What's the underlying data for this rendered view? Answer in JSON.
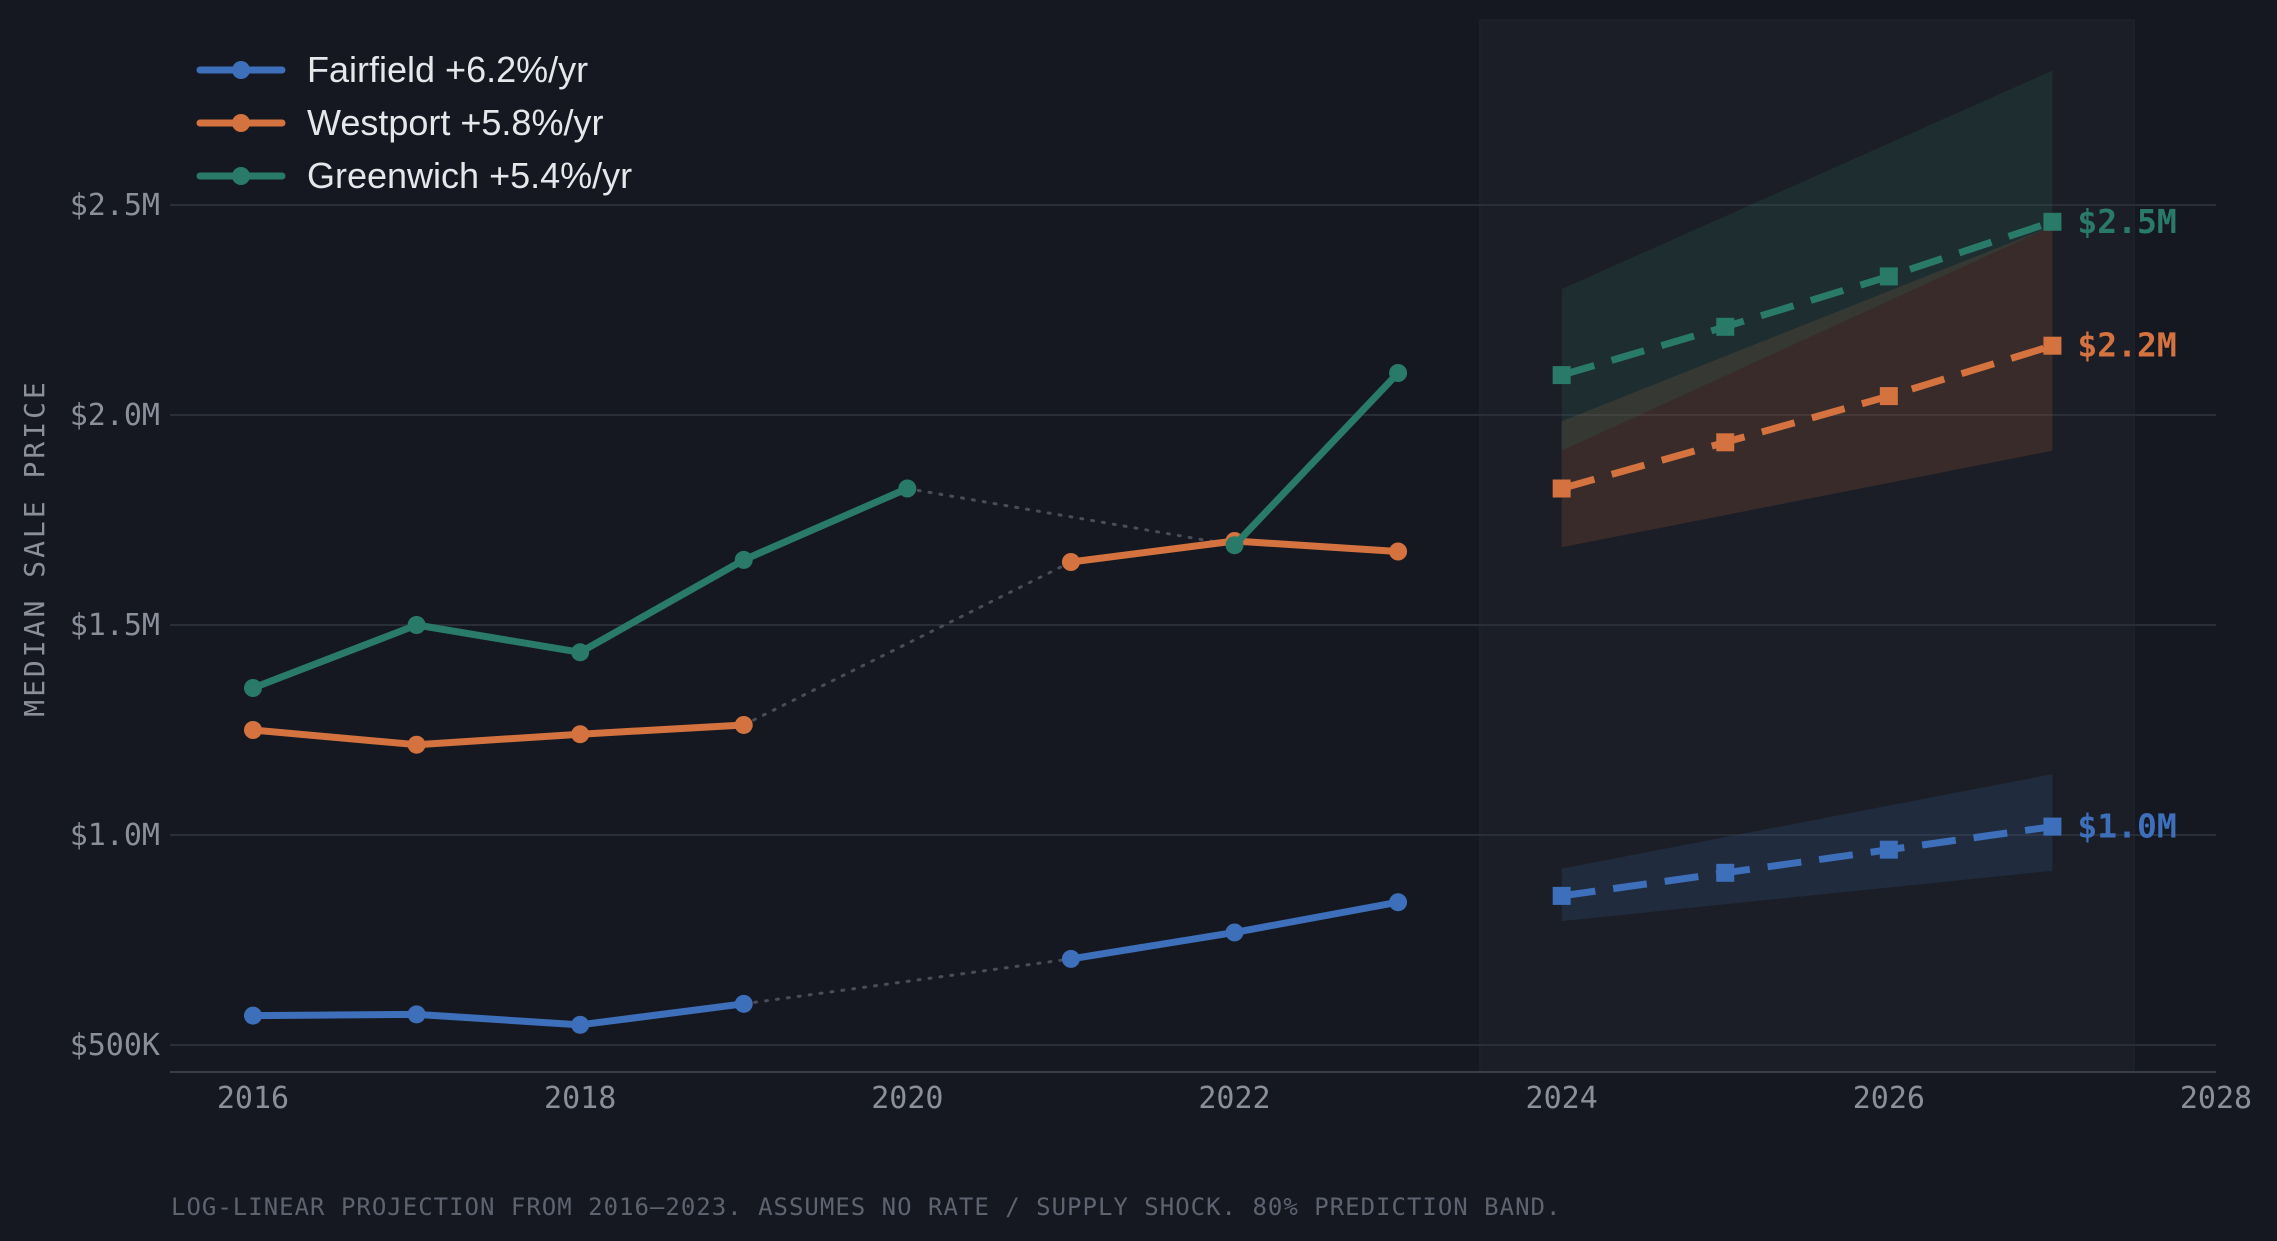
{
  "chart_data": {
    "type": "line",
    "xlabel": "",
    "ylabel": "MEDIAN SALE PRICE",
    "xlim": [
      2015.5,
      2028
    ],
    "ylim": [
      435000,
      2800000
    ],
    "y_ticks": [
      {
        "value": 500000,
        "label": "$500K"
      },
      {
        "value": 1000000,
        "label": "$1.0M"
      },
      {
        "value": 1500000,
        "label": "$1.5M"
      },
      {
        "value": 2000000,
        "label": "$2.0M"
      },
      {
        "value": 2500000,
        "label": "$2.5M"
      }
    ],
    "x_ticks": [
      {
        "value": 2016,
        "label": "2016"
      },
      {
        "value": 2018,
        "label": "2018"
      },
      {
        "value": 2020,
        "label": "2020"
      },
      {
        "value": 2022,
        "label": "2022"
      },
      {
        "value": 2024,
        "label": "2024"
      },
      {
        "value": 2026,
        "label": "2026"
      },
      {
        "value": 2028,
        "label": "2028"
      }
    ],
    "grid": "horizontal",
    "legend_position": "top-left",
    "forecast_region": [
      2023.5,
      2027.5
    ],
    "series": [
      {
        "name": "Fairfield",
        "legend_label": "Fairfield  +6.2%/yr",
        "color": "#3d6fbb",
        "historical": [
          [
            2016,
            570000
          ],
          [
            2017,
            573000
          ],
          [
            2018,
            548000
          ],
          [
            2019,
            598000
          ],
          [
            2021,
            705000
          ],
          [
            2022,
            768000
          ],
          [
            2023,
            840000
          ]
        ],
        "gaps": [
          [
            2019,
            2021
          ]
        ],
        "forecast": [
          [
            2024,
            855000
          ],
          [
            2025,
            910000
          ],
          [
            2026,
            965000
          ],
          [
            2027,
            1020000
          ]
        ],
        "band_low": [
          [
            2024,
            795000
          ],
          [
            2027,
            915000
          ]
        ],
        "band_high": [
          [
            2024,
            920000
          ],
          [
            2027,
            1145000
          ]
        ],
        "end_label": "$1.0M"
      },
      {
        "name": "Westport",
        "legend_label": "Westport  +5.8%/yr",
        "color": "#d4733f",
        "historical": [
          [
            2016,
            1250000
          ],
          [
            2017,
            1215000
          ],
          [
            2018,
            1240000
          ],
          [
            2019,
            1262000
          ],
          [
            2021,
            1650000
          ],
          [
            2022,
            1700000
          ],
          [
            2023,
            1675000
          ]
        ],
        "gaps": [
          [
            2019,
            2021
          ]
        ],
        "forecast": [
          [
            2024,
            1825000
          ],
          [
            2025,
            1935000
          ],
          [
            2026,
            2045000
          ],
          [
            2027,
            2165000
          ]
        ],
        "band_low": [
          [
            2024,
            1685000
          ],
          [
            2027,
            1915000
          ]
        ],
        "band_high": [
          [
            2024,
            1985000
          ],
          [
            2027,
            2450000
          ]
        ],
        "end_label": "$2.2M"
      },
      {
        "name": "Greenwich",
        "legend_label": "Greenwich  +5.4%/yr",
        "color": "#2a7a6a",
        "historical": [
          [
            2016,
            1350000
          ],
          [
            2017,
            1500000
          ],
          [
            2018,
            1435000
          ],
          [
            2019,
            1655000
          ],
          [
            2020,
            1825000
          ],
          [
            2022,
            1690000
          ],
          [
            2023,
            2100000
          ]
        ],
        "gaps": [
          [
            2020,
            2022
          ]
        ],
        "forecast": [
          [
            2024,
            2095000
          ],
          [
            2025,
            2210000
          ],
          [
            2026,
            2330000
          ],
          [
            2027,
            2460000
          ]
        ],
        "band_low": [
          [
            2024,
            1915000
          ],
          [
            2027,
            2450000
          ]
        ],
        "band_high": [
          [
            2024,
            2300000
          ],
          [
            2027,
            2820000
          ]
        ],
        "end_label": "$2.5M"
      }
    ],
    "footnote": "LOG-LINEAR PROJECTION FROM 2016–2023. ASSUMES NO RATE / SUPPLY SHOCK. 80% PREDICTION BAND."
  }
}
